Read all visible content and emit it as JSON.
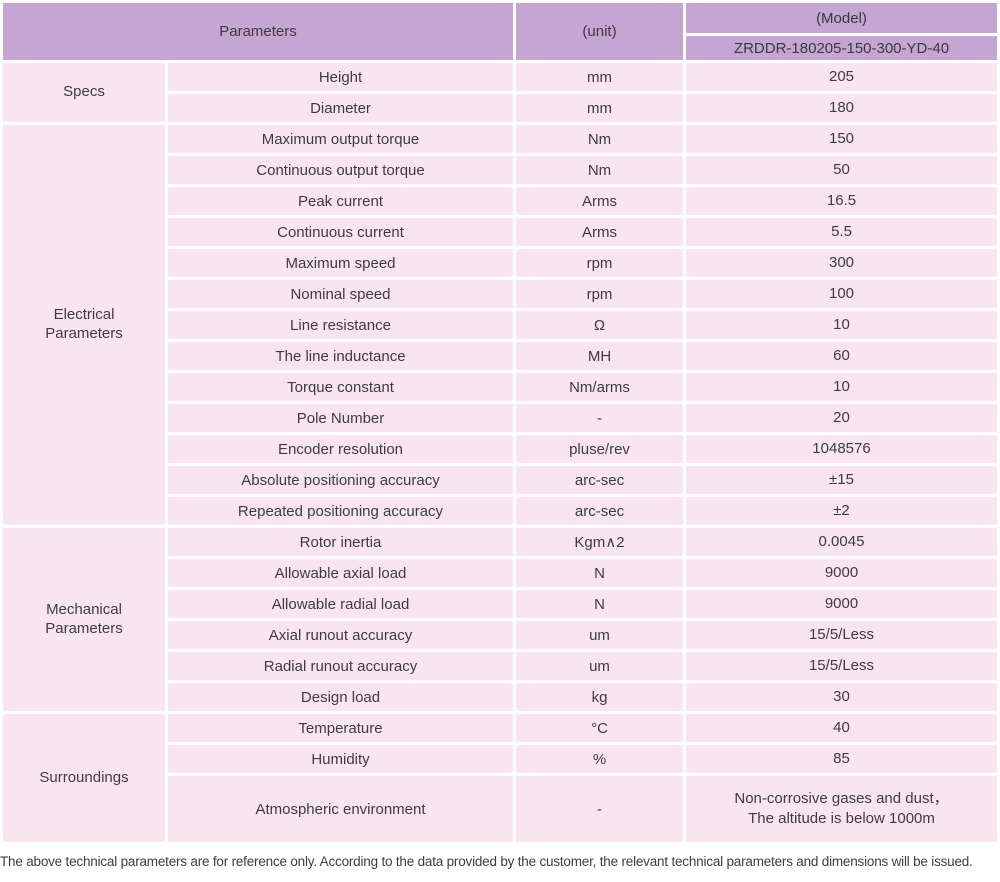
{
  "colors": {
    "header_bg": "#c5a5d2",
    "cell_bg": "#f9e5f0",
    "separator": "#ffffff",
    "text": "#3d3d3d"
  },
  "header": {
    "parameters_label": "Parameters",
    "unit_label": "(unit)",
    "model_label": "(Model)",
    "model_number": "ZRDDR-180205-150-300-YD-40"
  },
  "groups": [
    {
      "label": "Specs",
      "rows": [
        {
          "parameter": "Height",
          "unit": "mm",
          "value": "205"
        },
        {
          "parameter": "Diameter",
          "unit": "mm",
          "value": "180"
        }
      ]
    },
    {
      "label": "Electrical Parameters",
      "rows": [
        {
          "parameter": "Maximum output torque",
          "unit": "Nm",
          "value": "150"
        },
        {
          "parameter": "Continuous output torque",
          "unit": "Nm",
          "value": "50"
        },
        {
          "parameter": "Peak current",
          "unit": "Arms",
          "value": "16.5"
        },
        {
          "parameter": "Continuous current",
          "unit": "Arms",
          "value": "5.5"
        },
        {
          "parameter": "Maximum speed",
          "unit": "rpm",
          "value": "300"
        },
        {
          "parameter": "Nominal speed",
          "unit": "rpm",
          "value": "100"
        },
        {
          "parameter": "Line resistance",
          "unit": "Ω",
          "value": "10"
        },
        {
          "parameter": "The line inductance",
          "unit": "MH",
          "value": "60"
        },
        {
          "parameter": "Torque constant",
          "unit": "Nm/arms",
          "value": "10"
        },
        {
          "parameter": "Pole Number",
          "unit": "-",
          "value": "20"
        },
        {
          "parameter": "Encoder resolution",
          "unit": "pluse/rev",
          "value": "1048576"
        },
        {
          "parameter": "Absolute positioning accuracy",
          "unit": "arc-sec",
          "value": "±15"
        },
        {
          "parameter": "Repeated positioning accuracy",
          "unit": "arc-sec",
          "value": "±2"
        }
      ]
    },
    {
      "label": "Mechanical Parameters",
      "rows": [
        {
          "parameter": "Rotor inertia",
          "unit": "Kgm∧2",
          "value": "0.0045"
        },
        {
          "parameter": "Allowable axial load",
          "unit": "N",
          "value": "9000"
        },
        {
          "parameter": "Allowable radial load",
          "unit": "N",
          "value": "9000"
        },
        {
          "parameter": "Axial runout accuracy",
          "unit": "um",
          "value": "15/5/Less"
        },
        {
          "parameter": "Radial runout accuracy",
          "unit": "um",
          "value": "15/5/Less"
        },
        {
          "parameter": "Design load",
          "unit": "kg",
          "value": "30"
        }
      ]
    },
    {
      "label": "Surroundings",
      "rows": [
        {
          "parameter": "Temperature",
          "unit": "°C",
          "value": "40"
        },
        {
          "parameter": "Humidity",
          "unit": "%",
          "value": "85"
        },
        {
          "parameter": "Atmospheric environment",
          "unit": "-",
          "value": "Non-corrosive gases and dust，\nThe altitude is below 1000m",
          "tall": true
        }
      ]
    }
  ],
  "footer_note": "The above technical parameters are for reference only. According to the data provided by the customer, the relevant technical parameters and dimensions will be issued."
}
